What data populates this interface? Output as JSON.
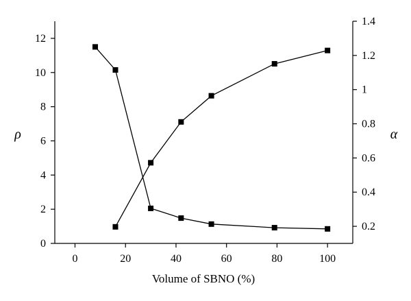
{
  "chart_data": {
    "type": "line",
    "title": "",
    "xlabel": "Volume of SBNO (%)",
    "ylabel_left": "ρ",
    "ylabel_right": "α",
    "xlim": [
      -8,
      110
    ],
    "ylim_left": [
      0,
      13
    ],
    "ylim_right": [
      0.1,
      1.4
    ],
    "x_ticks": [
      0,
      20,
      40,
      60,
      80,
      100
    ],
    "y_left_ticks": [
      0,
      2,
      4,
      6,
      8,
      10,
      12
    ],
    "y_right_ticks": [
      0.2,
      0.4,
      0.6,
      0.8,
      1,
      1.2,
      1.4
    ],
    "grid": false,
    "legend": "none",
    "series": [
      {
        "axis": "left",
        "marker": "square",
        "x": [
          8,
          16,
          30,
          42,
          54,
          79,
          100
        ],
        "y": [
          11.5,
          10.15,
          2.05,
          1.48,
          1.13,
          0.92,
          0.85
        ]
      },
      {
        "axis": "right",
        "marker": "square",
        "x": [
          16,
          30,
          42,
          54,
          79,
          100
        ],
        "y": [
          0.197,
          0.572,
          0.811,
          0.964,
          1.151,
          1.229
        ]
      }
    ]
  }
}
